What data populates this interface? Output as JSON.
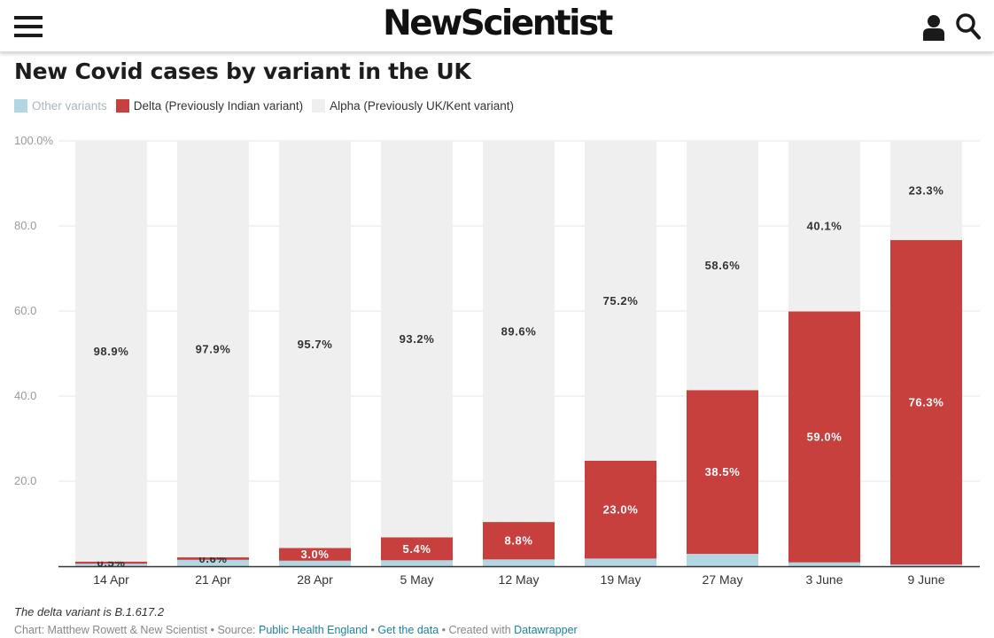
{
  "header": {
    "logo": "NewScientist",
    "icons": [
      "menu-icon",
      "user-icon",
      "search-icon"
    ]
  },
  "chart_data": {
    "type": "bar",
    "stacked": true,
    "title": "New Covid cases by variant in the UK",
    "categories": [
      "14 Apr",
      "21 Apr",
      "28 Apr",
      "5 May",
      "12 May",
      "19 May",
      "27 May",
      "3 June",
      "9 June"
    ],
    "series": [
      {
        "name": "Other variants",
        "color": "#b3d6e3",
        "values": [
          0.6,
          1.5,
          1.3,
          1.4,
          1.6,
          1.8,
          2.9,
          0.9,
          0.4
        ]
      },
      {
        "name": "Delta (Previously Indian variant)",
        "color": "#c8403d",
        "values": [
          0.5,
          0.6,
          3.0,
          5.4,
          8.8,
          23.0,
          38.5,
          59.0,
          76.3
        ],
        "labels": [
          "0.5%",
          "0.6%",
          "3.0%",
          "5.4%",
          "8.8%",
          "23.0%",
          "38.5%",
          "59.0%",
          "76.3%"
        ]
      },
      {
        "name": "Alpha (Previously UK/Kent variant)",
        "color": "#efefef",
        "values": [
          98.9,
          97.9,
          95.7,
          93.2,
          89.6,
          75.2,
          58.6,
          40.1,
          23.3
        ],
        "labels": [
          "98.9%",
          "97.9%",
          "95.7%",
          "93.2%",
          "89.6%",
          "75.2%",
          "58.6%",
          "40.1%",
          "23.3%"
        ]
      }
    ],
    "yticks": [
      "100.0%",
      "80.0",
      "60.0",
      "40.0",
      "20.0"
    ],
    "ytick_values": [
      100,
      80,
      60,
      40,
      20
    ],
    "ylim": [
      0,
      100
    ],
    "grid": true,
    "legend_position": "top-left"
  },
  "notes": {
    "description": "The delta variant is B.1.617.2",
    "byline_prefix": "Chart: Matthew Rowett & New Scientist • Source: ",
    "source_link": "Public Health England",
    "separator": " • ",
    "data_link": "Get the data",
    "created_prefix": " • Created with ",
    "tool_link": "Datawrapper"
  }
}
